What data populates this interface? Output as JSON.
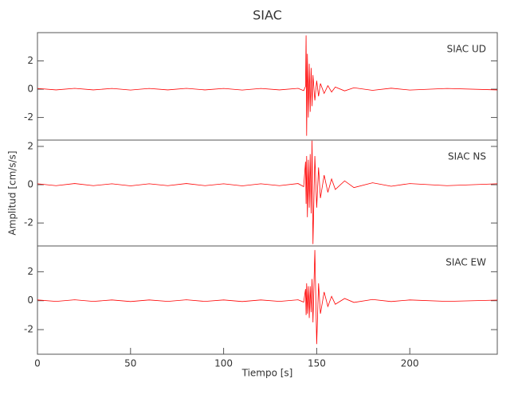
{
  "chart_data": [
    {
      "type": "line",
      "title": "SIAC",
      "annotation": "SIAC UD",
      "x": [
        0,
        10,
        20,
        30,
        40,
        50,
        60,
        70,
        80,
        90,
        100,
        110,
        120,
        130,
        140,
        143,
        144,
        144.3,
        144.6,
        145,
        145.5,
        146,
        146.5,
        147,
        147.5,
        148,
        149,
        150,
        151,
        152,
        154,
        156,
        158,
        160,
        165,
        170,
        180,
        190,
        200,
        220,
        247
      ],
      "series": [
        {
          "color": "#ff0000",
          "values": [
            0.05,
            -0.05,
            0.06,
            -0.05,
            0.05,
            -0.06,
            0.05,
            -0.05,
            0.06,
            -0.05,
            0.05,
            -0.06,
            0.05,
            -0.05,
            0.06,
            -0.1,
            0.2,
            3.8,
            -3.3,
            2.5,
            -2.0,
            1.8,
            -1.6,
            1.5,
            -1.2,
            1.0,
            -0.8,
            0.6,
            -0.5,
            0.4,
            -0.3,
            0.25,
            -0.2,
            0.15,
            -0.12,
            0.1,
            -0.08,
            0.07,
            -0.06,
            0.05,
            -0.05
          ]
        }
      ],
      "xlim": [
        0,
        247
      ],
      "ylim": [
        -3.6,
        4.0
      ],
      "yticks": [
        -2,
        0,
        2
      ]
    },
    {
      "type": "line",
      "ylabel": "Amplitud [cm/s/s]",
      "annotation": "SIAC NS",
      "x": [
        0,
        10,
        20,
        30,
        40,
        50,
        60,
        70,
        80,
        90,
        100,
        110,
        120,
        130,
        140,
        143,
        144,
        144.3,
        144.6,
        145,
        145.5,
        146,
        146.5,
        147,
        147.5,
        148,
        149,
        150,
        151,
        152,
        154,
        156,
        158,
        160,
        165,
        170,
        180,
        190,
        200,
        220,
        247
      ],
      "series": [
        {
          "color": "#ff0000",
          "values": [
            0.05,
            -0.05,
            0.06,
            -0.05,
            0.05,
            -0.06,
            0.05,
            -0.05,
            0.06,
            -0.05,
            0.05,
            -0.06,
            0.05,
            -0.05,
            0.06,
            -0.1,
            1.2,
            -1.0,
            1.5,
            -1.7,
            1.3,
            -1.2,
            1.6,
            -1.5,
            2.3,
            -3.1,
            1.5,
            -1.2,
            0.9,
            -0.7,
            0.5,
            -0.4,
            0.3,
            -0.25,
            0.2,
            -0.15,
            0.1,
            -0.08,
            0.06,
            -0.05,
            0.05
          ]
        }
      ],
      "xlim": [
        0,
        247
      ],
      "ylim": [
        -3.2,
        2.33
      ],
      "yticks": [
        -2,
        0,
        2
      ]
    },
    {
      "type": "line",
      "xlabel": "Tiempo [s]",
      "annotation": "SIAC EW",
      "x": [
        0,
        10,
        20,
        30,
        40,
        50,
        60,
        70,
        80,
        90,
        100,
        110,
        120,
        130,
        140,
        143,
        144,
        144.3,
        144.6,
        145,
        145.5,
        146,
        146.5,
        147,
        147.5,
        148,
        149,
        150,
        151,
        152,
        154,
        156,
        158,
        160,
        165,
        170,
        180,
        190,
        200,
        220,
        247
      ],
      "series": [
        {
          "color": "#ff0000",
          "values": [
            0.05,
            -0.05,
            0.06,
            -0.05,
            0.05,
            -0.06,
            0.05,
            -0.05,
            0.06,
            -0.05,
            0.05,
            -0.06,
            0.05,
            -0.05,
            0.06,
            -0.1,
            0.8,
            -1.0,
            1.2,
            -0.9,
            1.0,
            -1.2,
            1.0,
            -0.8,
            1.5,
            -1.5,
            3.5,
            -3.0,
            1.2,
            -0.9,
            0.6,
            -0.4,
            0.3,
            -0.25,
            0.15,
            -0.12,
            0.08,
            -0.06,
            0.05,
            -0.05,
            0.04
          ]
        }
      ],
      "xlim": [
        0,
        247
      ],
      "ylim": [
        -3.7,
        3.78
      ],
      "yticks": [
        -2,
        0,
        2
      ],
      "xticks": [
        0,
        50,
        100,
        150,
        200
      ]
    }
  ]
}
